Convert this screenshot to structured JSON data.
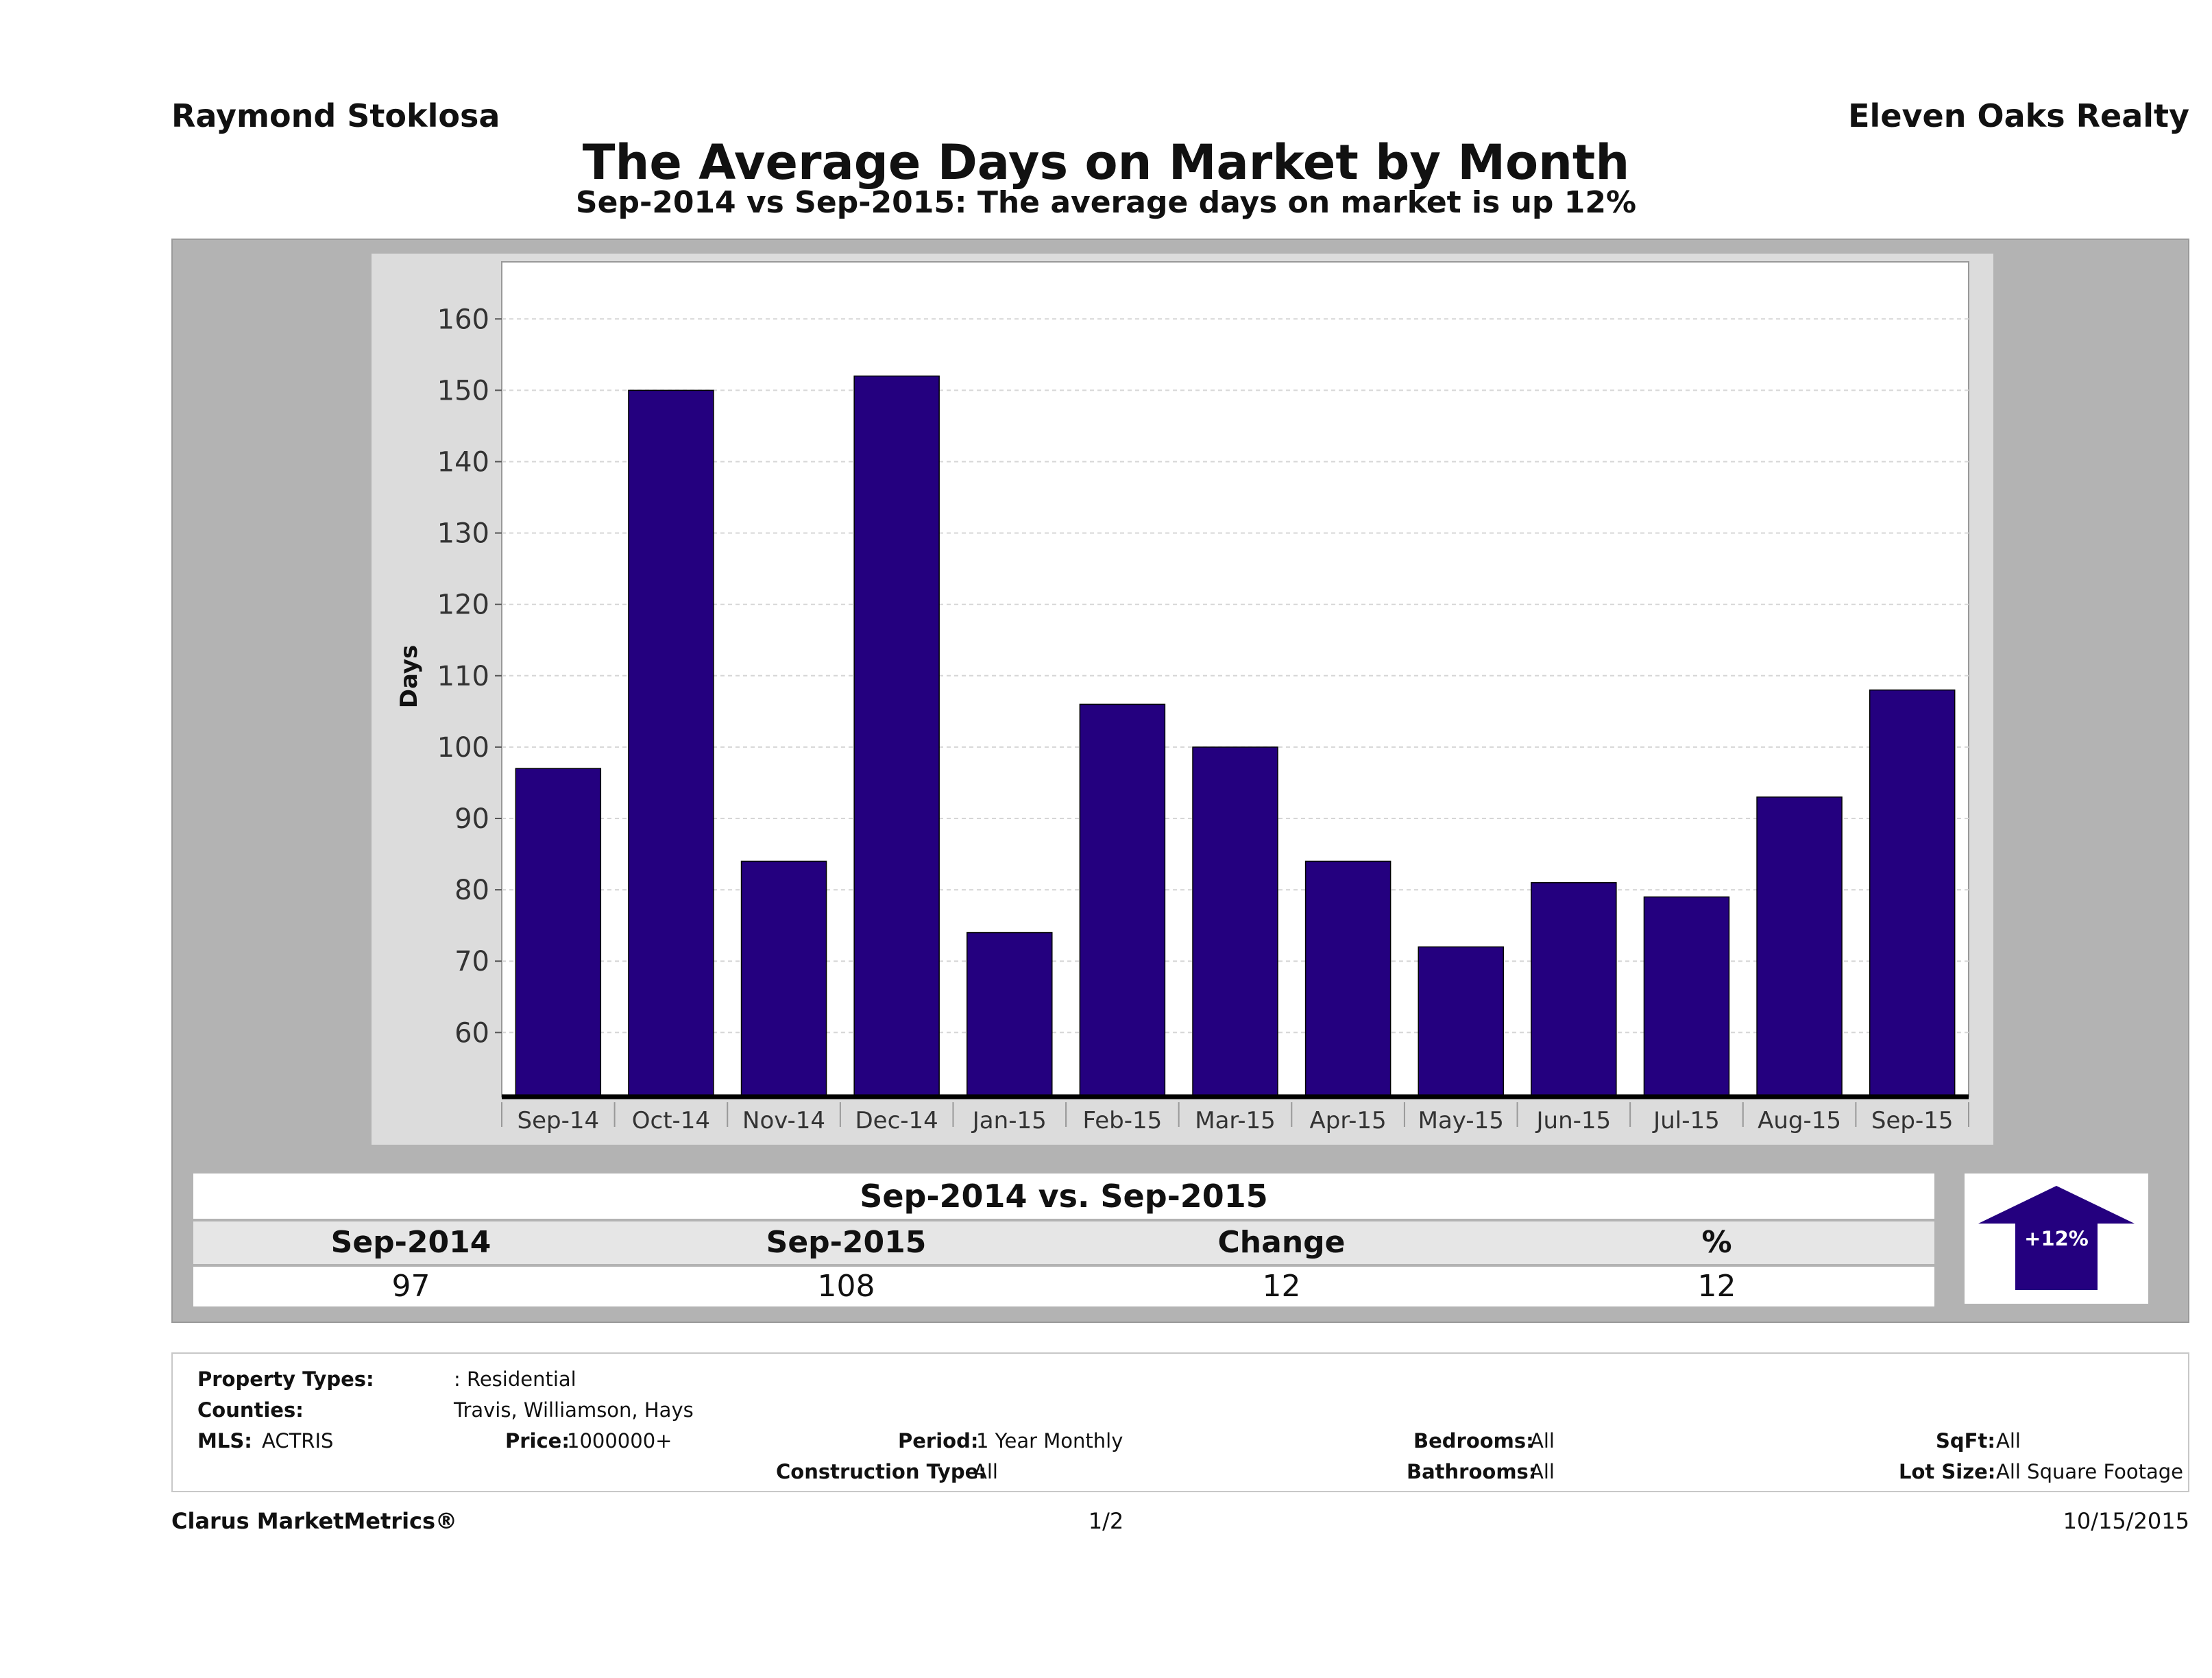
{
  "header": {
    "agent": "Raymond Stoklosa",
    "company": "Eleven Oaks Realty",
    "title": "The Average Days on Market by Month",
    "subtitle": "Sep-2014 vs Sep-2015: The average days on market is up 12%"
  },
  "chart_data": {
    "type": "bar",
    "categories": [
      "Sep-14",
      "Oct-14",
      "Nov-14",
      "Dec-14",
      "Jan-15",
      "Feb-15",
      "Mar-15",
      "Apr-15",
      "May-15",
      "Jun-15",
      "Jul-15",
      "Aug-15",
      "Sep-15"
    ],
    "values": [
      97,
      150,
      84,
      152,
      74,
      106,
      100,
      84,
      72,
      81,
      79,
      93,
      108
    ],
    "ylabel": "Days",
    "yticks": [
      60,
      70,
      80,
      90,
      100,
      110,
      120,
      130,
      140,
      150,
      160
    ],
    "ylim": [
      51,
      168
    ],
    "bar_color": "#24007f",
    "grid": true
  },
  "comparison": {
    "title": "Sep-2014 vs. Sep-2015",
    "headers": [
      "Sep-2014",
      "Sep-2015",
      "Change",
      "%"
    ],
    "values": [
      "97",
      "108",
      "12",
      "12"
    ],
    "badge": "+12%",
    "badge_color": "#24007f"
  },
  "filters": {
    "property_types_label": "Property Types:",
    "property_types_value": ": Residential",
    "counties_label": "Counties:",
    "counties_value": "Travis, Williamson, Hays",
    "mls_label": "MLS:",
    "mls_value": "ACTRIS",
    "price_label": "Price:",
    "price_value": "1000000+",
    "period_label": "Period:",
    "period_value": "1 Year Monthly",
    "construction_label": "Construction Type:",
    "construction_value": "All",
    "bedrooms_label": "Bedrooms:",
    "bedrooms_value": "All",
    "bathrooms_label": "Bathrooms:",
    "bathrooms_value": "All",
    "sqft_label": "SqFt:",
    "sqft_value": "All",
    "lot_label": "Lot Size:",
    "lot_value": "All Square Footage"
  },
  "footer": {
    "brand": "Clarus MarketMetrics®",
    "page": "1/2",
    "date": "10/15/2015"
  }
}
